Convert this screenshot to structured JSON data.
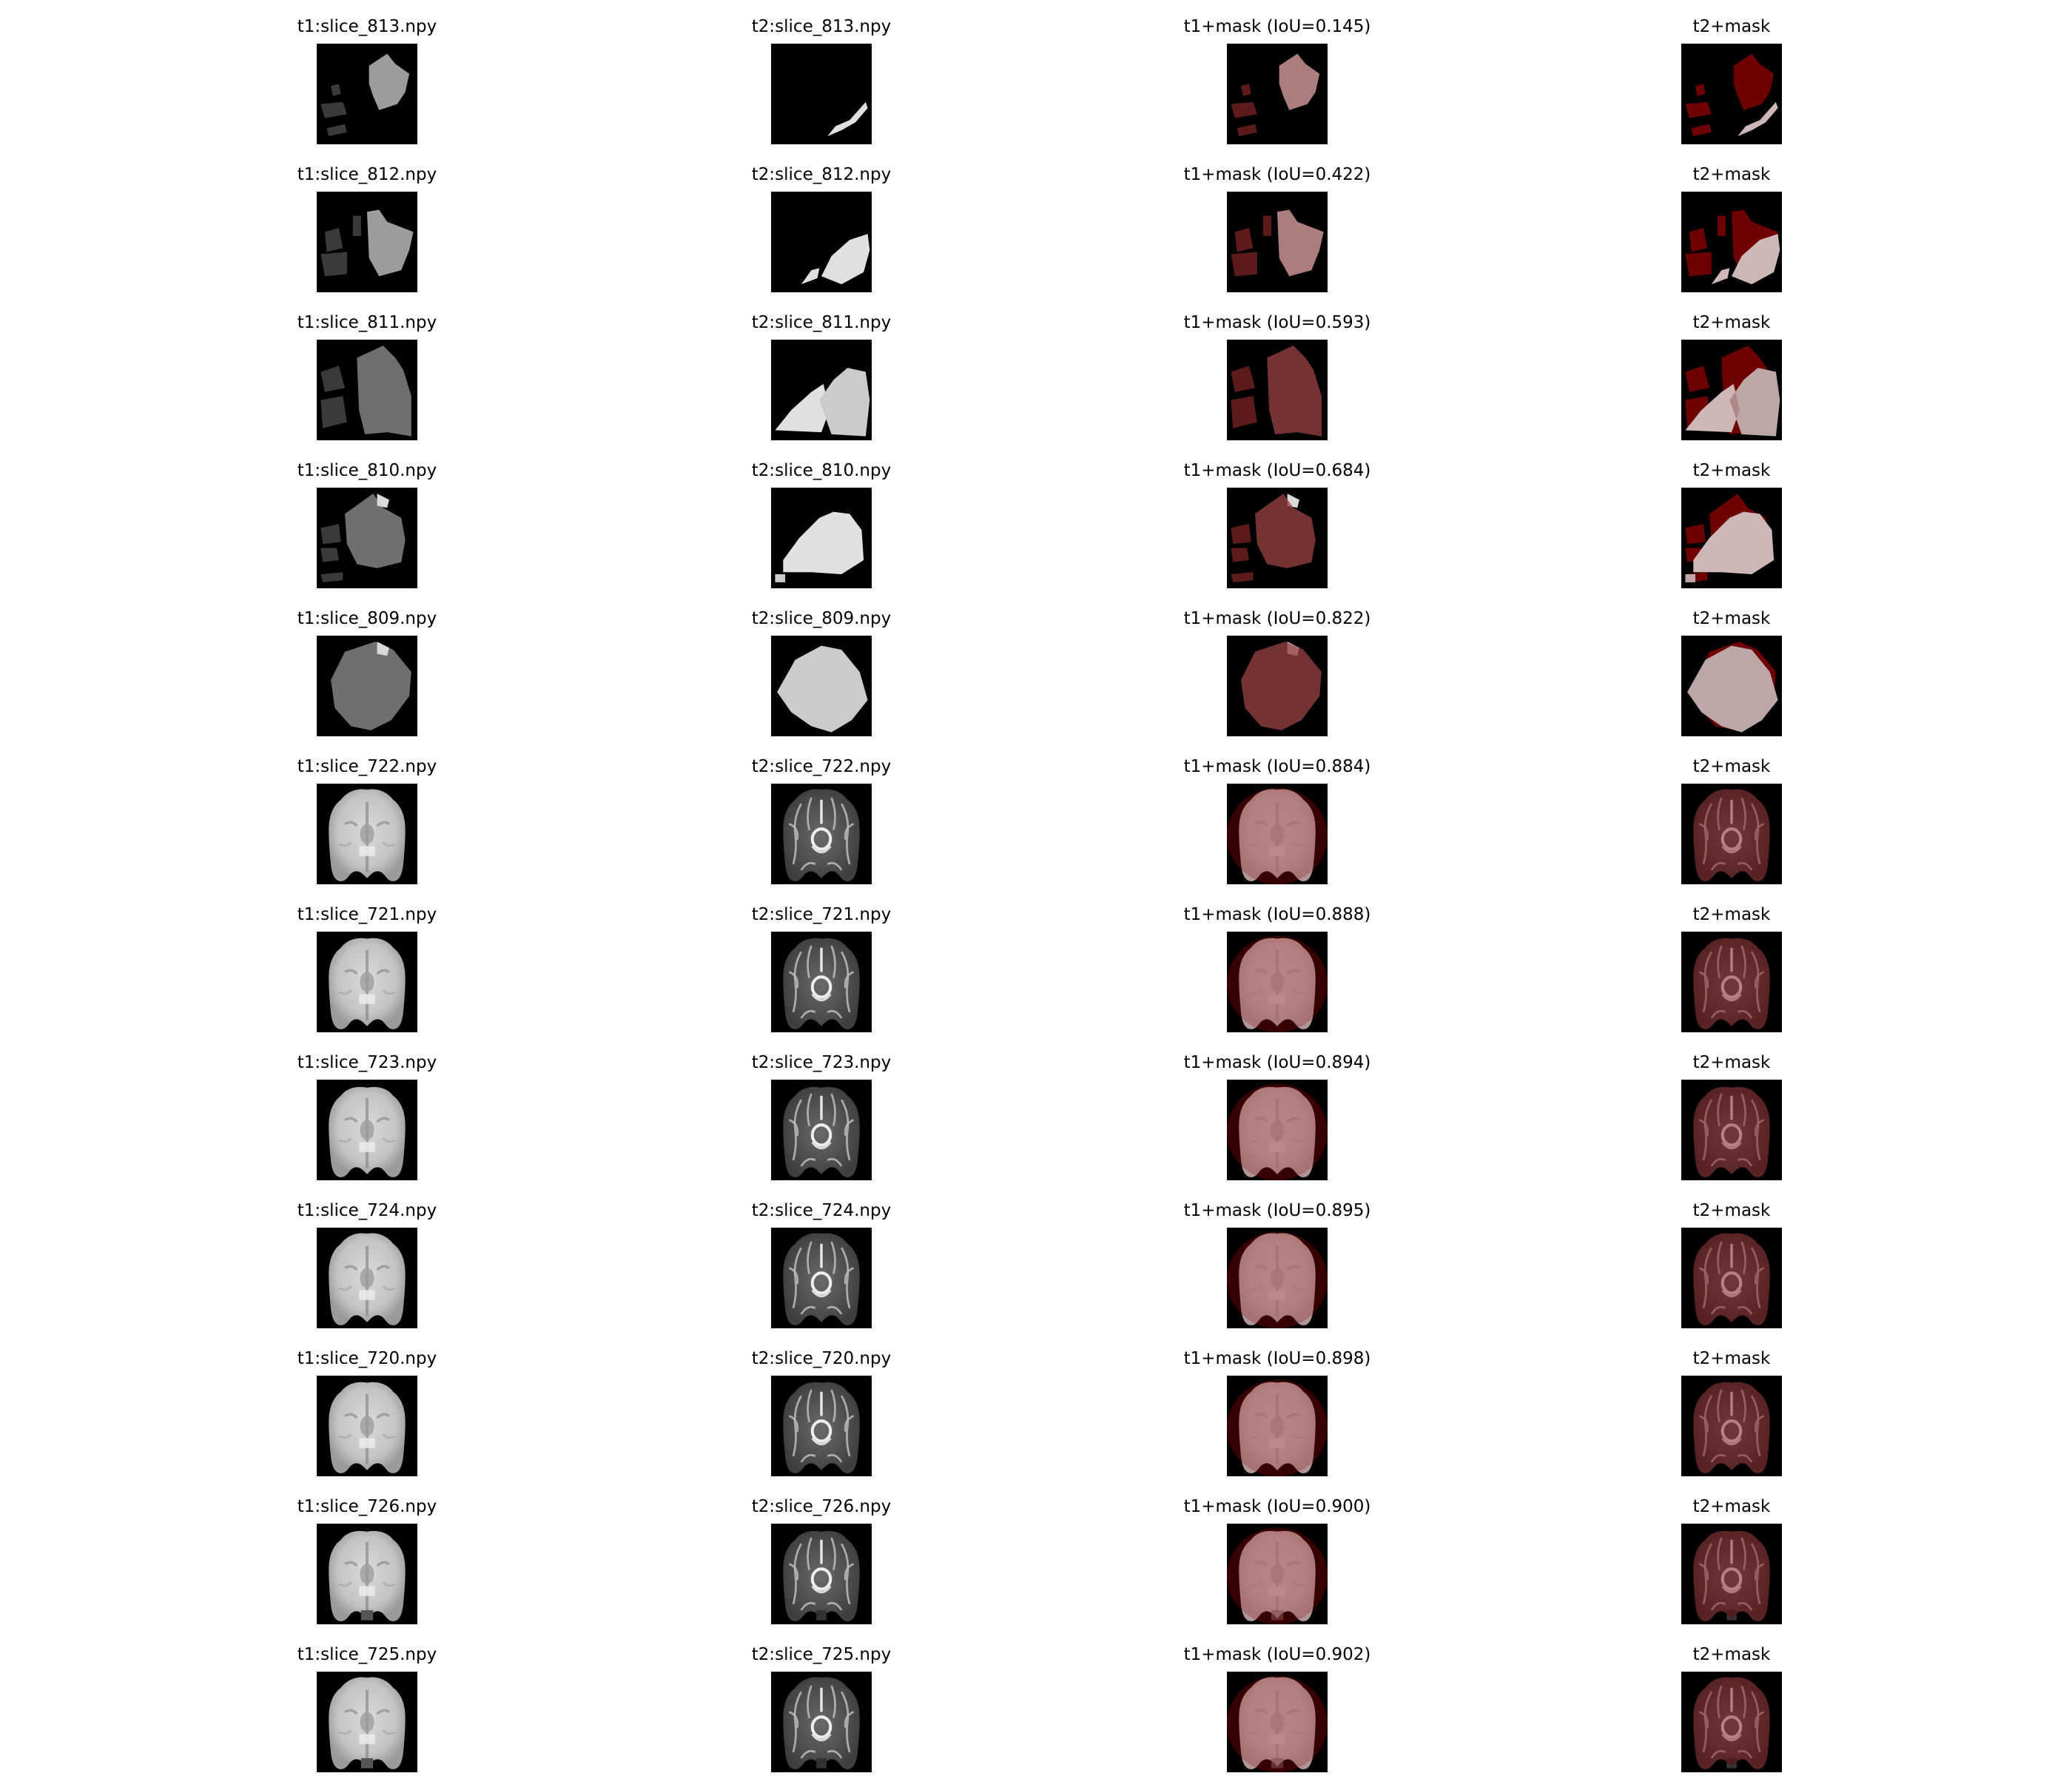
{
  "figure": {
    "rows": [
      {
        "t1_file": "t1:slice_813.npy",
        "t2_file": "t2:slice_813.npy",
        "overlay_label": "t1+mask (IoU=0.145)",
        "t2_overlay_label": "t2+mask",
        "iou": 0.145,
        "kind": "sparse",
        "variant": 0
      },
      {
        "t1_file": "t1:slice_812.npy",
        "t2_file": "t2:slice_812.npy",
        "overlay_label": "t1+mask (IoU=0.422)",
        "t2_overlay_label": "t2+mask",
        "iou": 0.422,
        "kind": "sparse",
        "variant": 1
      },
      {
        "t1_file": "t1:slice_811.npy",
        "t2_file": "t2:slice_811.npy",
        "overlay_label": "t1+mask (IoU=0.593)",
        "t2_overlay_label": "t2+mask",
        "iou": 0.593,
        "kind": "sparse",
        "variant": 2
      },
      {
        "t1_file": "t1:slice_810.npy",
        "t2_file": "t2:slice_810.npy",
        "overlay_label": "t1+mask (IoU=0.684)",
        "t2_overlay_label": "t2+mask",
        "iou": 0.684,
        "kind": "sparse",
        "variant": 3
      },
      {
        "t1_file": "t1:slice_809.npy",
        "t2_file": "t2:slice_809.npy",
        "overlay_label": "t1+mask (IoU=0.822)",
        "t2_overlay_label": "t2+mask",
        "iou": 0.822,
        "kind": "sparse",
        "variant": 4
      },
      {
        "t1_file": "t1:slice_722.npy",
        "t2_file": "t2:slice_722.npy",
        "overlay_label": "t1+mask (IoU=0.884)",
        "t2_overlay_label": "t2+mask",
        "iou": 0.884,
        "kind": "brain",
        "variant": 0
      },
      {
        "t1_file": "t1:slice_721.npy",
        "t2_file": "t2:slice_721.npy",
        "overlay_label": "t1+mask (IoU=0.888)",
        "t2_overlay_label": "t2+mask",
        "iou": 0.888,
        "kind": "brain",
        "variant": 1
      },
      {
        "t1_file": "t1:slice_723.npy",
        "t2_file": "t2:slice_723.npy",
        "overlay_label": "t1+mask (IoU=0.894)",
        "t2_overlay_label": "t2+mask",
        "iou": 0.894,
        "kind": "brain",
        "variant": 2
      },
      {
        "t1_file": "t1:slice_724.npy",
        "t2_file": "t2:slice_724.npy",
        "overlay_label": "t1+mask (IoU=0.895)",
        "t2_overlay_label": "t2+mask",
        "iou": 0.895,
        "kind": "brain",
        "variant": 3
      },
      {
        "t1_file": "t1:slice_720.npy",
        "t2_file": "t2:slice_720.npy",
        "overlay_label": "t1+mask (IoU=0.898)",
        "t2_overlay_label": "t2+mask",
        "iou": 0.898,
        "kind": "brain",
        "variant": 4
      },
      {
        "t1_file": "t1:slice_726.npy",
        "t2_file": "t2:slice_726.npy",
        "overlay_label": "t1+mask (IoU=0.900)",
        "t2_overlay_label": "t2+mask",
        "iou": 0.9,
        "kind": "brain",
        "variant": 5
      },
      {
        "t1_file": "t1:slice_725.npy",
        "t2_file": "t2:slice_725.npy",
        "overlay_label": "t1+mask (IoU=0.902)",
        "t2_overlay_label": "t2+mask",
        "iou": 0.902,
        "kind": "brain",
        "variant": 6
      }
    ],
    "colors": {
      "background": "#000000",
      "mask": "#7a0000",
      "label": "#000000"
    }
  }
}
